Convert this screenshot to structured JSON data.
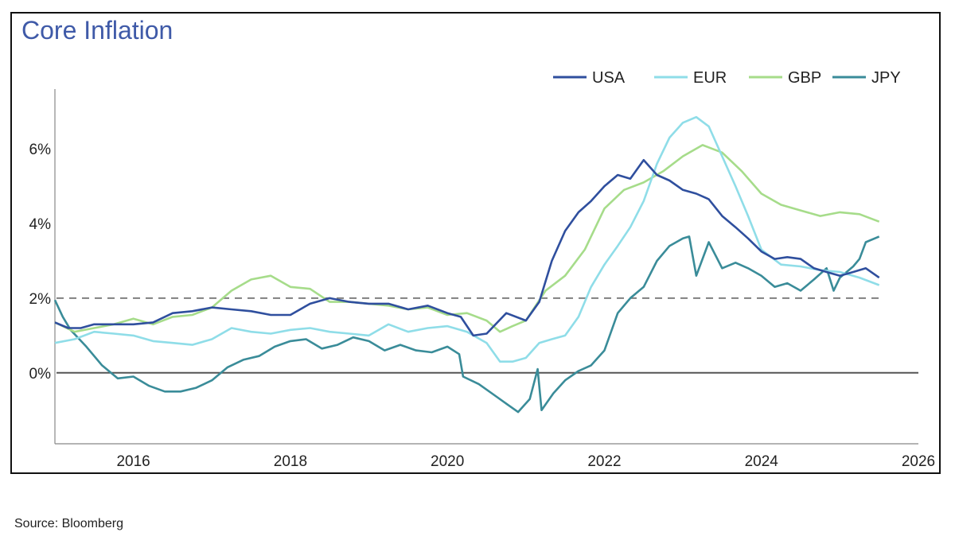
{
  "chart_data": {
    "type": "line",
    "title": "Core Inflation",
    "source": "Source: Bloomberg",
    "xlim": [
      2015.0,
      2026.0
    ],
    "ylim": [
      -1.9,
      7.6
    ],
    "x_ticks": [
      2016,
      2018,
      2020,
      2022,
      2024,
      2026
    ],
    "y_ticks": [
      {
        "value": 0,
        "label": "0%"
      },
      {
        "value": 2,
        "label": "2%"
      },
      {
        "value": 4,
        "label": "4%"
      },
      {
        "value": 6,
        "label": "6%"
      }
    ],
    "reference_lines": [
      {
        "y": 0,
        "style": "solid",
        "color": "#555555"
      },
      {
        "y": 2,
        "style": "dashed",
        "color": "#808080"
      }
    ],
    "legend_position": "top-right",
    "series": [
      {
        "name": "USA",
        "color": "#2f4f9e",
        "points": [
          [
            2015.0,
            1.35
          ],
          [
            2015.17,
            1.2
          ],
          [
            2015.33,
            1.2
          ],
          [
            2015.5,
            1.3
          ],
          [
            2015.75,
            1.3
          ],
          [
            2016.0,
            1.3
          ],
          [
            2016.25,
            1.35
          ],
          [
            2016.5,
            1.6
          ],
          [
            2016.75,
            1.65
          ],
          [
            2017.0,
            1.75
          ],
          [
            2017.25,
            1.7
          ],
          [
            2017.5,
            1.65
          ],
          [
            2017.75,
            1.55
          ],
          [
            2018.0,
            1.55
          ],
          [
            2018.25,
            1.85
          ],
          [
            2018.5,
            2.0
          ],
          [
            2018.75,
            1.9
          ],
          [
            2019.0,
            1.85
          ],
          [
            2019.25,
            1.85
          ],
          [
            2019.5,
            1.7
          ],
          [
            2019.75,
            1.8
          ],
          [
            2020.0,
            1.6
          ],
          [
            2020.17,
            1.5
          ],
          [
            2020.33,
            1.0
          ],
          [
            2020.5,
            1.05
          ],
          [
            2020.75,
            1.6
          ],
          [
            2021.0,
            1.4
          ],
          [
            2021.17,
            1.9
          ],
          [
            2021.33,
            3.0
          ],
          [
            2021.5,
            3.8
          ],
          [
            2021.67,
            4.3
          ],
          [
            2021.83,
            4.6
          ],
          [
            2022.0,
            5.0
          ],
          [
            2022.17,
            5.3
          ],
          [
            2022.33,
            5.2
          ],
          [
            2022.5,
            5.7
          ],
          [
            2022.67,
            5.3
          ],
          [
            2022.83,
            5.15
          ],
          [
            2023.0,
            4.9
          ],
          [
            2023.17,
            4.8
          ],
          [
            2023.33,
            4.65
          ],
          [
            2023.5,
            4.2
          ],
          [
            2023.67,
            3.9
          ],
          [
            2023.83,
            3.6
          ],
          [
            2024.0,
            3.25
          ],
          [
            2024.17,
            3.05
          ],
          [
            2024.33,
            3.1
          ],
          [
            2024.5,
            3.05
          ],
          [
            2024.67,
            2.8
          ],
          [
            2024.83,
            2.7
          ],
          [
            2025.0,
            2.6
          ],
          [
            2025.17,
            2.7
          ],
          [
            2025.33,
            2.8
          ],
          [
            2025.5,
            2.55
          ]
        ]
      },
      {
        "name": "EUR",
        "color": "#8fdde8",
        "points": [
          [
            2015.0,
            0.8
          ],
          [
            2015.25,
            0.9
          ],
          [
            2015.5,
            1.1
          ],
          [
            2015.75,
            1.05
          ],
          [
            2016.0,
            1.0
          ],
          [
            2016.25,
            0.85
          ],
          [
            2016.5,
            0.8
          ],
          [
            2016.75,
            0.75
          ],
          [
            2017.0,
            0.9
          ],
          [
            2017.25,
            1.2
          ],
          [
            2017.5,
            1.1
          ],
          [
            2017.75,
            1.05
          ],
          [
            2018.0,
            1.15
          ],
          [
            2018.25,
            1.2
          ],
          [
            2018.5,
            1.1
          ],
          [
            2018.75,
            1.05
          ],
          [
            2019.0,
            1.0
          ],
          [
            2019.25,
            1.3
          ],
          [
            2019.5,
            1.1
          ],
          [
            2019.75,
            1.2
          ],
          [
            2020.0,
            1.25
          ],
          [
            2020.25,
            1.1
          ],
          [
            2020.5,
            0.8
          ],
          [
            2020.67,
            0.3
          ],
          [
            2020.83,
            0.3
          ],
          [
            2021.0,
            0.4
          ],
          [
            2021.17,
            0.8
          ],
          [
            2021.33,
            0.9
          ],
          [
            2021.5,
            1.0
          ],
          [
            2021.67,
            1.5
          ],
          [
            2021.83,
            2.3
          ],
          [
            2022.0,
            2.9
          ],
          [
            2022.17,
            3.4
          ],
          [
            2022.33,
            3.9
          ],
          [
            2022.5,
            4.6
          ],
          [
            2022.67,
            5.6
          ],
          [
            2022.83,
            6.3
          ],
          [
            2023.0,
            6.7
          ],
          [
            2023.17,
            6.85
          ],
          [
            2023.33,
            6.6
          ],
          [
            2023.5,
            5.8
          ],
          [
            2023.67,
            5.0
          ],
          [
            2023.83,
            4.2
          ],
          [
            2024.0,
            3.3
          ],
          [
            2024.25,
            2.9
          ],
          [
            2024.5,
            2.85
          ],
          [
            2024.75,
            2.75
          ],
          [
            2025.0,
            2.7
          ],
          [
            2025.25,
            2.55
          ],
          [
            2025.5,
            2.35
          ]
        ]
      },
      {
        "name": "GBP",
        "color": "#a6dc8a",
        "points": [
          [
            2015.0,
            1.35
          ],
          [
            2015.25,
            1.1
          ],
          [
            2015.5,
            1.2
          ],
          [
            2015.75,
            1.3
          ],
          [
            2016.0,
            1.45
          ],
          [
            2016.25,
            1.3
          ],
          [
            2016.5,
            1.5
          ],
          [
            2016.75,
            1.55
          ],
          [
            2017.0,
            1.75
          ],
          [
            2017.25,
            2.2
          ],
          [
            2017.5,
            2.5
          ],
          [
            2017.75,
            2.6
          ],
          [
            2018.0,
            2.3
          ],
          [
            2018.25,
            2.25
          ],
          [
            2018.5,
            1.9
          ],
          [
            2018.75,
            1.9
          ],
          [
            2019.0,
            1.85
          ],
          [
            2019.25,
            1.8
          ],
          [
            2019.5,
            1.7
          ],
          [
            2019.75,
            1.75
          ],
          [
            2020.0,
            1.55
          ],
          [
            2020.25,
            1.6
          ],
          [
            2020.5,
            1.4
          ],
          [
            2020.67,
            1.1
          ],
          [
            2020.83,
            1.25
          ],
          [
            2021.0,
            1.4
          ],
          [
            2021.25,
            2.2
          ],
          [
            2021.5,
            2.6
          ],
          [
            2021.75,
            3.3
          ],
          [
            2022.0,
            4.4
          ],
          [
            2022.25,
            4.9
          ],
          [
            2022.5,
            5.1
          ],
          [
            2022.75,
            5.4
          ],
          [
            2023.0,
            5.8
          ],
          [
            2023.25,
            6.1
          ],
          [
            2023.5,
            5.9
          ],
          [
            2023.75,
            5.4
          ],
          [
            2024.0,
            4.8
          ],
          [
            2024.25,
            4.5
          ],
          [
            2024.5,
            4.35
          ],
          [
            2024.75,
            4.2
          ],
          [
            2025.0,
            4.3
          ],
          [
            2025.25,
            4.25
          ],
          [
            2025.5,
            4.05
          ]
        ]
      },
      {
        "name": "JPY",
        "color": "#3a8c99",
        "points": [
          [
            2015.0,
            1.95
          ],
          [
            2015.1,
            1.5
          ],
          [
            2015.2,
            1.15
          ],
          [
            2015.4,
            0.7
          ],
          [
            2015.6,
            0.2
          ],
          [
            2015.8,
            -0.15
          ],
          [
            2016.0,
            -0.1
          ],
          [
            2016.2,
            -0.35
          ],
          [
            2016.4,
            -0.5
          ],
          [
            2016.6,
            -0.5
          ],
          [
            2016.8,
            -0.4
          ],
          [
            2017.0,
            -0.2
          ],
          [
            2017.2,
            0.15
          ],
          [
            2017.4,
            0.35
          ],
          [
            2017.6,
            0.45
          ],
          [
            2017.8,
            0.7
          ],
          [
            2018.0,
            0.85
          ],
          [
            2018.2,
            0.9
          ],
          [
            2018.4,
            0.65
          ],
          [
            2018.6,
            0.75
          ],
          [
            2018.8,
            0.95
          ],
          [
            2019.0,
            0.85
          ],
          [
            2019.2,
            0.6
          ],
          [
            2019.4,
            0.75
          ],
          [
            2019.6,
            0.6
          ],
          [
            2019.8,
            0.55
          ],
          [
            2020.0,
            0.7
          ],
          [
            2020.15,
            0.5
          ],
          [
            2020.2,
            -0.1
          ],
          [
            2020.4,
            -0.3
          ],
          [
            2020.6,
            -0.6
          ],
          [
            2020.8,
            -0.9
          ],
          [
            2020.9,
            -1.05
          ],
          [
            2021.05,
            -0.7
          ],
          [
            2021.15,
            0.1
          ],
          [
            2021.2,
            -1.0
          ],
          [
            2021.35,
            -0.55
          ],
          [
            2021.5,
            -0.2
          ],
          [
            2021.67,
            0.05
          ],
          [
            2021.83,
            0.2
          ],
          [
            2022.0,
            0.6
          ],
          [
            2022.17,
            1.6
          ],
          [
            2022.33,
            2.0
          ],
          [
            2022.5,
            2.3
          ],
          [
            2022.67,
            3.0
          ],
          [
            2022.83,
            3.4
          ],
          [
            2023.0,
            3.6
          ],
          [
            2023.08,
            3.65
          ],
          [
            2023.17,
            2.6
          ],
          [
            2023.33,
            3.5
          ],
          [
            2023.5,
            2.8
          ],
          [
            2023.67,
            2.95
          ],
          [
            2023.83,
            2.8
          ],
          [
            2024.0,
            2.6
          ],
          [
            2024.17,
            2.3
          ],
          [
            2024.33,
            2.4
          ],
          [
            2024.5,
            2.2
          ],
          [
            2024.67,
            2.5
          ],
          [
            2024.83,
            2.8
          ],
          [
            2024.92,
            2.2
          ],
          [
            2025.0,
            2.55
          ],
          [
            2025.17,
            2.85
          ],
          [
            2025.25,
            3.05
          ],
          [
            2025.33,
            3.5
          ],
          [
            2025.5,
            3.65
          ]
        ]
      }
    ]
  }
}
